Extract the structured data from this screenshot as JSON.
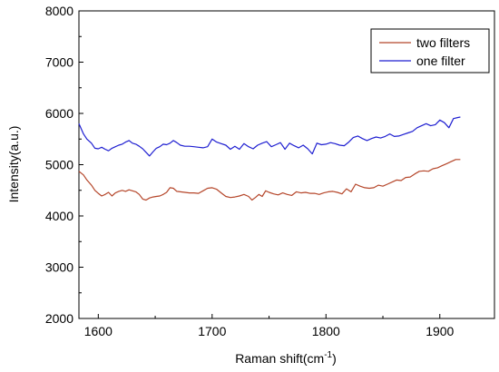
{
  "chart_data": {
    "type": "line",
    "title": "",
    "xlabel": "Raman shift(cm",
    "xlabel_sup": "-1",
    "xlabel_tail": ")",
    "ylabel": "Intensity(a.u.)",
    "xlim": [
      1583,
      1948
    ],
    "ylim": [
      2000,
      8000
    ],
    "xticks": [
      1600,
      1700,
      1800,
      1900
    ],
    "yticks": [
      2000,
      3000,
      4000,
      5000,
      6000,
      7000,
      8000
    ],
    "grid": false,
    "legend_position": "top-right",
    "series": [
      {
        "name": "two filters",
        "color": "#b5462a",
        "points": [
          [
            1583,
            4870
          ],
          [
            1587,
            4800
          ],
          [
            1590,
            4700
          ],
          [
            1594,
            4600
          ],
          [
            1597,
            4500
          ],
          [
            1600,
            4440
          ],
          [
            1603,
            4390
          ],
          [
            1606,
            4420
          ],
          [
            1609,
            4460
          ],
          [
            1612,
            4390
          ],
          [
            1615,
            4450
          ],
          [
            1618,
            4480
          ],
          [
            1621,
            4500
          ],
          [
            1624,
            4480
          ],
          [
            1627,
            4510
          ],
          [
            1630,
            4490
          ],
          [
            1633,
            4470
          ],
          [
            1636,
            4420
          ],
          [
            1639,
            4330
          ],
          [
            1642,
            4310
          ],
          [
            1645,
            4350
          ],
          [
            1648,
            4370
          ],
          [
            1651,
            4380
          ],
          [
            1654,
            4390
          ],
          [
            1657,
            4420
          ],
          [
            1660,
            4460
          ],
          [
            1663,
            4550
          ],
          [
            1666,
            4540
          ],
          [
            1669,
            4480
          ],
          [
            1672,
            4470
          ],
          [
            1676,
            4460
          ],
          [
            1680,
            4450
          ],
          [
            1684,
            4450
          ],
          [
            1688,
            4440
          ],
          [
            1692,
            4490
          ],
          [
            1696,
            4540
          ],
          [
            1700,
            4550
          ],
          [
            1704,
            4520
          ],
          [
            1708,
            4450
          ],
          [
            1712,
            4380
          ],
          [
            1716,
            4360
          ],
          [
            1720,
            4370
          ],
          [
            1724,
            4390
          ],
          [
            1728,
            4420
          ],
          [
            1732,
            4380
          ],
          [
            1735,
            4310
          ],
          [
            1738,
            4360
          ],
          [
            1741,
            4420
          ],
          [
            1744,
            4380
          ],
          [
            1747,
            4490
          ],
          [
            1750,
            4460
          ],
          [
            1754,
            4430
          ],
          [
            1758,
            4410
          ],
          [
            1762,
            4450
          ],
          [
            1766,
            4420
          ],
          [
            1770,
            4400
          ],
          [
            1774,
            4470
          ],
          [
            1778,
            4450
          ],
          [
            1782,
            4460
          ],
          [
            1786,
            4440
          ],
          [
            1790,
            4440
          ],
          [
            1794,
            4420
          ],
          [
            1798,
            4450
          ],
          [
            1802,
            4470
          ],
          [
            1806,
            4480
          ],
          [
            1810,
            4460
          ],
          [
            1814,
            4430
          ],
          [
            1818,
            4530
          ],
          [
            1822,
            4470
          ],
          [
            1826,
            4620
          ],
          [
            1830,
            4580
          ],
          [
            1834,
            4550
          ],
          [
            1838,
            4540
          ],
          [
            1842,
            4550
          ],
          [
            1846,
            4600
          ],
          [
            1850,
            4580
          ],
          [
            1854,
            4620
          ],
          [
            1858,
            4660
          ],
          [
            1862,
            4700
          ],
          [
            1866,
            4690
          ],
          [
            1870,
            4750
          ],
          [
            1874,
            4760
          ],
          [
            1878,
            4820
          ],
          [
            1882,
            4870
          ],
          [
            1886,
            4880
          ],
          [
            1890,
            4870
          ],
          [
            1894,
            4920
          ],
          [
            1898,
            4940
          ],
          [
            1902,
            4980
          ],
          [
            1906,
            5020
          ],
          [
            1910,
            5060
          ],
          [
            1914,
            5100
          ],
          [
            1918,
            5100
          ]
        ]
      },
      {
        "name": "one filter",
        "color": "#1f1fd1",
        "points": [
          [
            1583,
            5800
          ],
          [
            1587,
            5600
          ],
          [
            1590,
            5500
          ],
          [
            1594,
            5420
          ],
          [
            1597,
            5320
          ],
          [
            1600,
            5310
          ],
          [
            1603,
            5340
          ],
          [
            1606,
            5300
          ],
          [
            1609,
            5270
          ],
          [
            1612,
            5320
          ],
          [
            1615,
            5350
          ],
          [
            1618,
            5380
          ],
          [
            1621,
            5400
          ],
          [
            1624,
            5440
          ],
          [
            1627,
            5470
          ],
          [
            1630,
            5420
          ],
          [
            1633,
            5400
          ],
          [
            1636,
            5360
          ],
          [
            1639,
            5310
          ],
          [
            1642,
            5240
          ],
          [
            1645,
            5170
          ],
          [
            1648,
            5250
          ],
          [
            1651,
            5320
          ],
          [
            1654,
            5350
          ],
          [
            1657,
            5400
          ],
          [
            1660,
            5390
          ],
          [
            1663,
            5420
          ],
          [
            1666,
            5470
          ],
          [
            1669,
            5430
          ],
          [
            1672,
            5380
          ],
          [
            1676,
            5360
          ],
          [
            1680,
            5360
          ],
          [
            1684,
            5350
          ],
          [
            1688,
            5340
          ],
          [
            1692,
            5330
          ],
          [
            1696,
            5350
          ],
          [
            1700,
            5500
          ],
          [
            1704,
            5440
          ],
          [
            1708,
            5410
          ],
          [
            1712,
            5380
          ],
          [
            1716,
            5300
          ],
          [
            1720,
            5360
          ],
          [
            1724,
            5300
          ],
          [
            1728,
            5410
          ],
          [
            1732,
            5350
          ],
          [
            1736,
            5310
          ],
          [
            1740,
            5380
          ],
          [
            1744,
            5420
          ],
          [
            1748,
            5450
          ],
          [
            1752,
            5350
          ],
          [
            1756,
            5390
          ],
          [
            1760,
            5430
          ],
          [
            1764,
            5300
          ],
          [
            1768,
            5420
          ],
          [
            1772,
            5370
          ],
          [
            1776,
            5330
          ],
          [
            1780,
            5380
          ],
          [
            1784,
            5310
          ],
          [
            1788,
            5210
          ],
          [
            1792,
            5420
          ],
          [
            1796,
            5390
          ],
          [
            1800,
            5400
          ],
          [
            1804,
            5430
          ],
          [
            1808,
            5410
          ],
          [
            1812,
            5380
          ],
          [
            1816,
            5370
          ],
          [
            1820,
            5440
          ],
          [
            1824,
            5530
          ],
          [
            1828,
            5560
          ],
          [
            1832,
            5510
          ],
          [
            1836,
            5470
          ],
          [
            1840,
            5510
          ],
          [
            1844,
            5540
          ],
          [
            1848,
            5520
          ],
          [
            1852,
            5550
          ],
          [
            1856,
            5600
          ],
          [
            1860,
            5550
          ],
          [
            1864,
            5560
          ],
          [
            1868,
            5590
          ],
          [
            1872,
            5620
          ],
          [
            1876,
            5650
          ],
          [
            1880,
            5720
          ],
          [
            1884,
            5760
          ],
          [
            1888,
            5800
          ],
          [
            1892,
            5760
          ],
          [
            1896,
            5780
          ],
          [
            1900,
            5870
          ],
          [
            1904,
            5820
          ],
          [
            1908,
            5720
          ],
          [
            1912,
            5900
          ],
          [
            1916,
            5920
          ],
          [
            1918,
            5930
          ]
        ]
      }
    ]
  }
}
